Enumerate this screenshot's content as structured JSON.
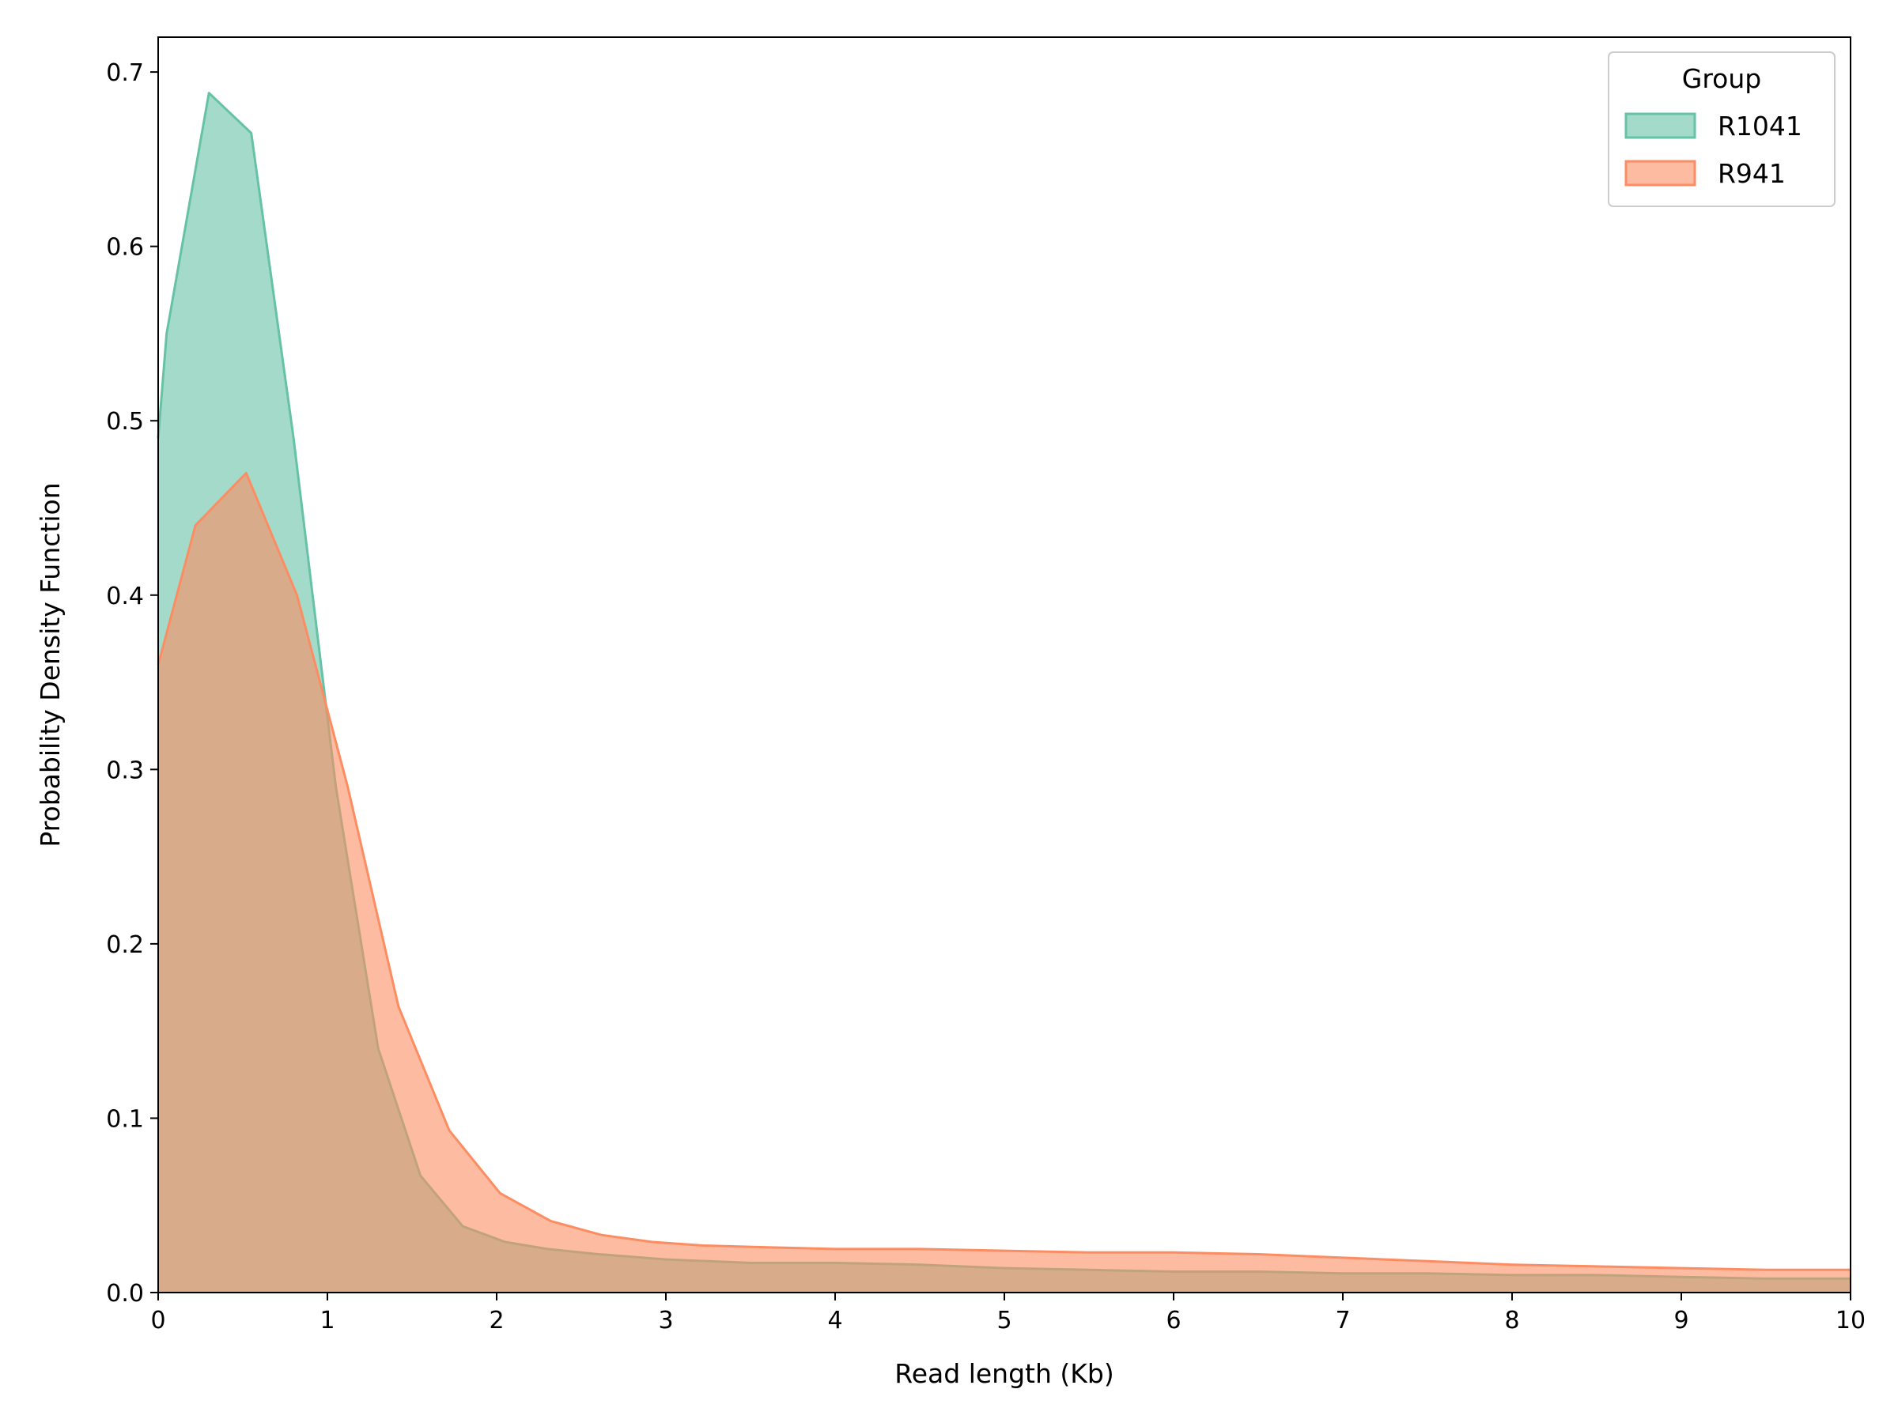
{
  "chart_data": {
    "type": "area",
    "title": "",
    "xlabel": "Read length (Kb)",
    "ylabel": "Probability Density Function",
    "xlim": [
      0,
      10
    ],
    "ylim": [
      0,
      0.72
    ],
    "x_ticks": [
      0,
      1,
      2,
      3,
      4,
      5,
      6,
      7,
      8,
      9,
      10
    ],
    "x_tick_labels": [
      "0",
      "1",
      "2",
      "3",
      "4",
      "5",
      "6",
      "7",
      "8",
      "9",
      "10"
    ],
    "y_ticks": [
      0.0,
      0.1,
      0.2,
      0.3,
      0.4,
      0.5,
      0.6,
      0.7
    ],
    "y_tick_labels": [
      "0.0",
      "0.1",
      "0.2",
      "0.3",
      "0.4",
      "0.5",
      "0.6",
      "0.7"
    ],
    "grid": false,
    "legend": {
      "title": "Group",
      "placement": "top-right"
    },
    "series": [
      {
        "name": "R1041",
        "color": "#66c2a5",
        "points": [
          [
            0.0,
            0.49
          ],
          [
            0.05,
            0.55
          ],
          [
            0.3,
            0.688
          ],
          [
            0.55,
            0.665
          ],
          [
            0.8,
            0.49
          ],
          [
            1.05,
            0.29
          ],
          [
            1.3,
            0.14
          ],
          [
            1.55,
            0.067
          ],
          [
            1.8,
            0.038
          ],
          [
            2.05,
            0.029
          ],
          [
            2.3,
            0.025
          ],
          [
            2.6,
            0.022
          ],
          [
            3.0,
            0.019
          ],
          [
            3.5,
            0.017
          ],
          [
            4.0,
            0.017
          ],
          [
            4.5,
            0.016
          ],
          [
            5.0,
            0.014
          ],
          [
            5.5,
            0.013
          ],
          [
            6.0,
            0.012
          ],
          [
            6.5,
            0.012
          ],
          [
            7.0,
            0.011
          ],
          [
            7.5,
            0.011
          ],
          [
            8.0,
            0.01
          ],
          [
            8.5,
            0.01
          ],
          [
            9.0,
            0.009
          ],
          [
            9.5,
            0.008
          ],
          [
            10.0,
            0.008
          ]
        ]
      },
      {
        "name": "R941",
        "color": "#fc8d62",
        "points": [
          [
            0.0,
            0.36
          ],
          [
            0.22,
            0.44
          ],
          [
            0.52,
            0.47
          ],
          [
            0.82,
            0.4
          ],
          [
            1.12,
            0.29
          ],
          [
            1.42,
            0.164
          ],
          [
            1.72,
            0.093
          ],
          [
            2.02,
            0.057
          ],
          [
            2.32,
            0.041
          ],
          [
            2.62,
            0.033
          ],
          [
            2.92,
            0.029
          ],
          [
            3.22,
            0.027
          ],
          [
            3.6,
            0.026
          ],
          [
            4.0,
            0.025
          ],
          [
            4.5,
            0.025
          ],
          [
            5.0,
            0.024
          ],
          [
            5.5,
            0.023
          ],
          [
            6.0,
            0.023
          ],
          [
            6.5,
            0.022
          ],
          [
            7.0,
            0.02
          ],
          [
            7.5,
            0.018
          ],
          [
            8.0,
            0.016
          ],
          [
            8.5,
            0.015
          ],
          [
            9.0,
            0.014
          ],
          [
            9.5,
            0.013
          ],
          [
            10.0,
            0.013
          ]
        ]
      }
    ]
  }
}
